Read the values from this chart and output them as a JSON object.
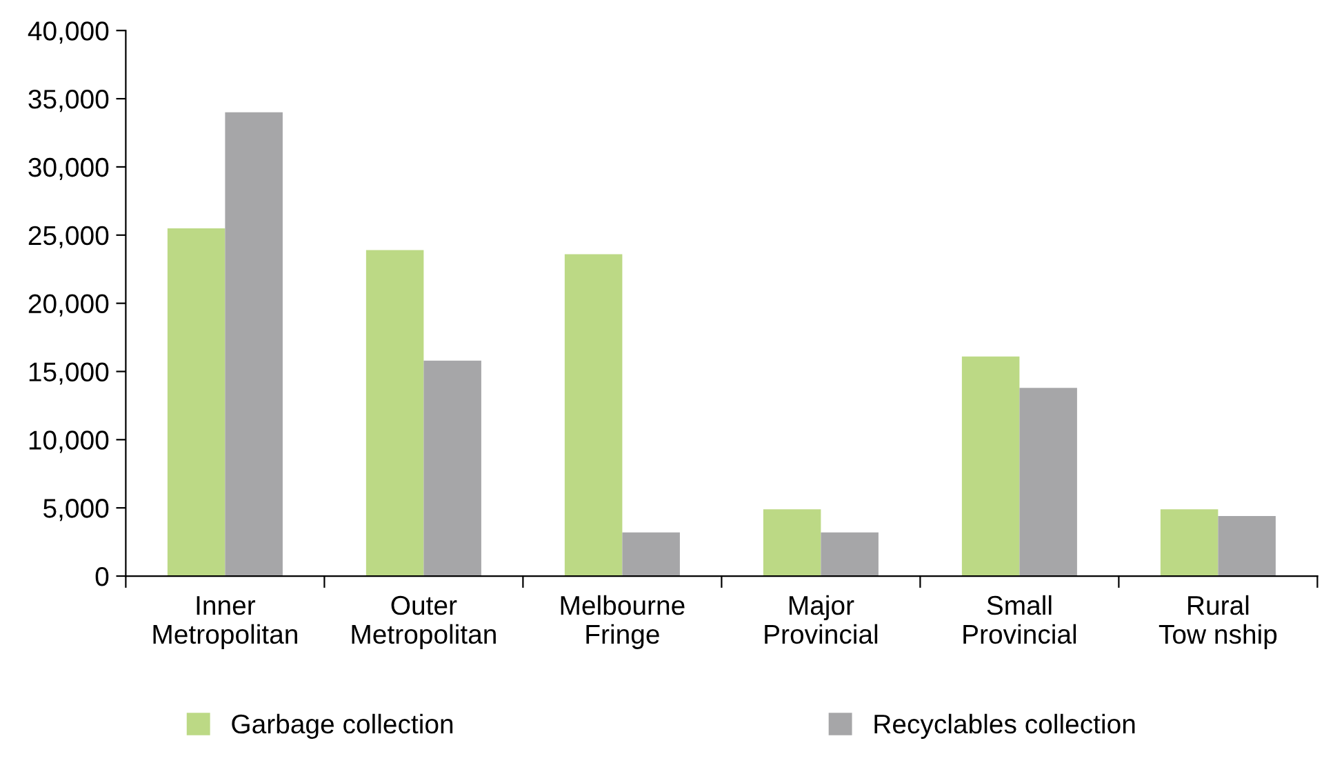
{
  "chart_data": {
    "type": "bar",
    "categories": [
      "Inner\nMetropolitan",
      "Outer\nMetropolitan",
      "Melbourne\nFringe",
      "Major\nProvincial",
      "Small\nProvincial",
      "Rural\nTow nship"
    ],
    "series": [
      {
        "name": "Garbage collection",
        "color": "#bcd985",
        "values": [
          25500,
          23900,
          23600,
          4900,
          16100,
          4900
        ]
      },
      {
        "name": "Recyclables collection",
        "color": "#a6a6a8",
        "values": [
          34000,
          15800,
          3200,
          3200,
          13800,
          4400
        ]
      }
    ],
    "ylim": [
      0,
      40000
    ],
    "yticks": [
      {
        "value": 0,
        "label": "0"
      },
      {
        "value": 5000,
        "label": "5,000"
      },
      {
        "value": 10000,
        "label": "10,000"
      },
      {
        "value": 15000,
        "label": "15,000"
      },
      {
        "value": 20000,
        "label": "20,000"
      },
      {
        "value": 25000,
        "label": "25,000"
      },
      {
        "value": 30000,
        "label": "30,000"
      },
      {
        "value": 35000,
        "label": "35,000"
      },
      {
        "value": 40000,
        "label": "40,000"
      }
    ],
    "grid": false,
    "legend": "bottom"
  }
}
